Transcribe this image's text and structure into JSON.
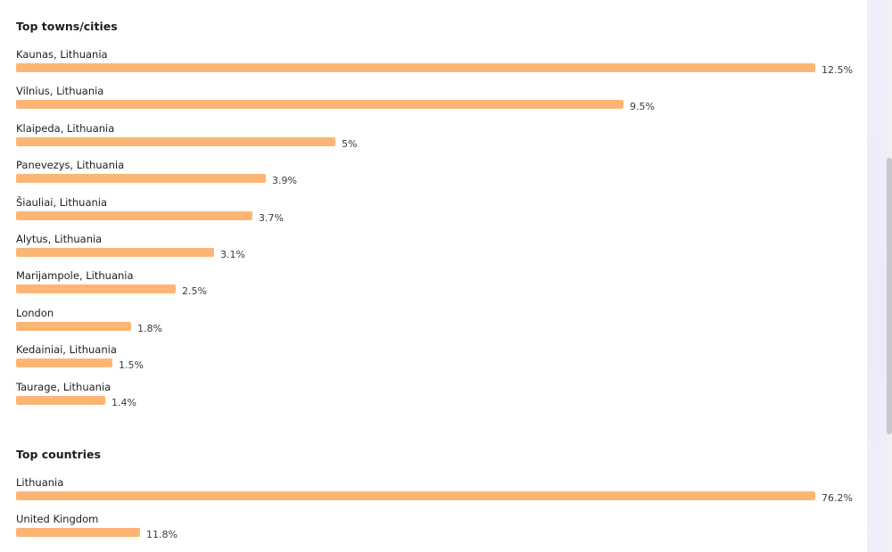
{
  "sections": {
    "cities": {
      "title": "Top towns/cities"
    },
    "countries": {
      "title": "Top countries"
    }
  },
  "colors": {
    "bar": "#fdb574"
  },
  "chart_data": [
    {
      "type": "bar",
      "orientation": "horizontal",
      "title": "Top towns/cities",
      "categories": [
        "Kaunas, Lithuania",
        "Vilnius, Lithuania",
        "Klaipeda, Lithuania",
        "Panevezys, Lithuania",
        "Šiauliai, Lithuania",
        "Alytus, Lithuania",
        "Marijampole, Lithuania",
        "London",
        "Kedainiai, Lithuania",
        "Taurage, Lithuania"
      ],
      "values": [
        12.5,
        9.5,
        5,
        3.9,
        3.7,
        3.1,
        2.5,
        1.8,
        1.5,
        1.4
      ],
      "value_labels": [
        "12.5%",
        "9.5%",
        "5%",
        "3.9%",
        "3.7%",
        "3.1%",
        "2.5%",
        "1.8%",
        "1.5%",
        "1.4%"
      ],
      "grid": false
    },
    {
      "type": "bar",
      "orientation": "horizontal",
      "title": "Top countries",
      "categories": [
        "Lithuania",
        "United Kingdom"
      ],
      "values": [
        76.2,
        11.8
      ],
      "value_labels": [
        "76.2%",
        "11.8%"
      ],
      "grid": false
    }
  ]
}
